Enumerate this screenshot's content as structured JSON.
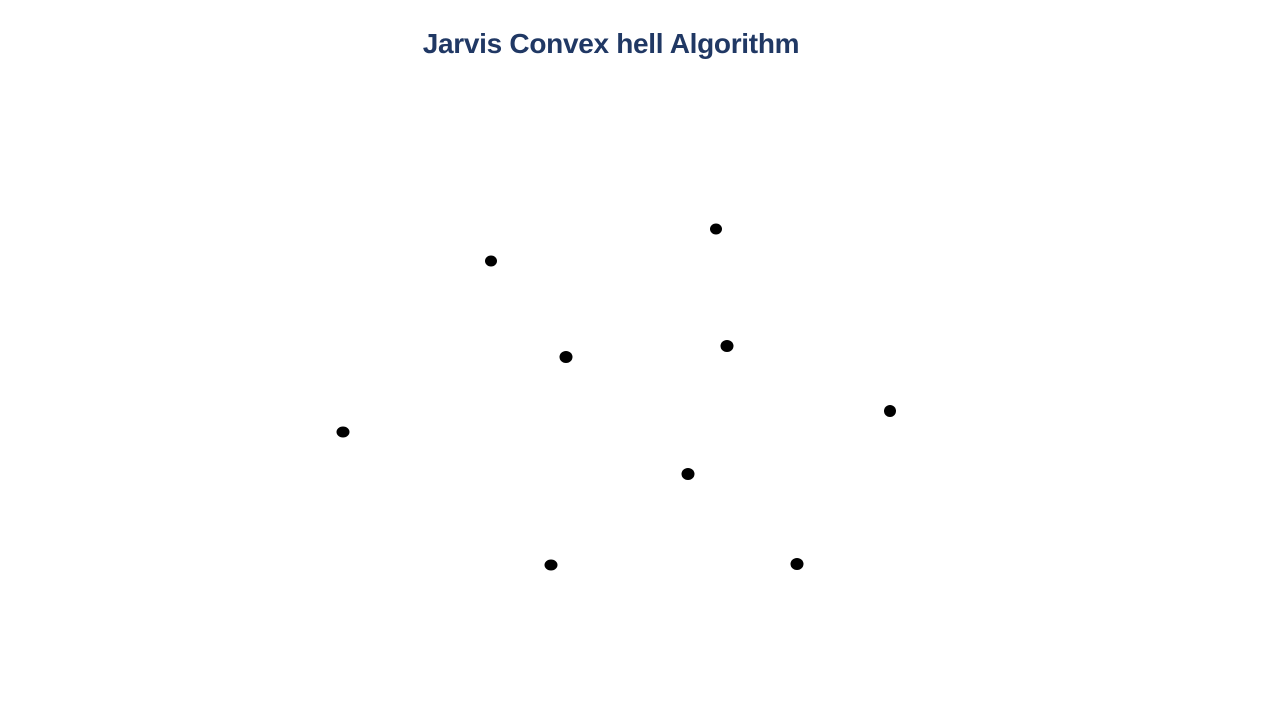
{
  "slide": {
    "title": "Jarvis Convex hell Algorithm"
  },
  "points": [
    {
      "name": "point-1",
      "color": "#000000"
    },
    {
      "name": "point-2",
      "color": "#000000"
    },
    {
      "name": "point-3",
      "color": "#000000"
    },
    {
      "name": "point-4",
      "color": "#000000"
    },
    {
      "name": "point-5",
      "color": "#000000"
    },
    {
      "name": "point-6",
      "color": "#000000"
    },
    {
      "name": "point-7",
      "color": "#000000"
    },
    {
      "name": "point-8",
      "color": "#000000"
    },
    {
      "name": "point-9",
      "color": "#000000"
    }
  ],
  "colors": {
    "title": "#203864",
    "point": "#000000",
    "background": "#ffffff"
  }
}
